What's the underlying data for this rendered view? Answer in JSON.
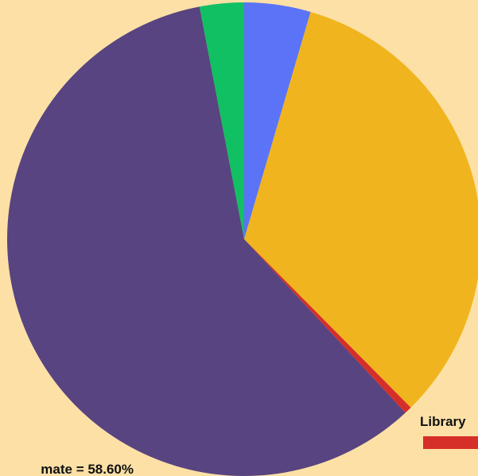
{
  "chart_data": {
    "type": "pie",
    "title": "",
    "start_angle_deg": 0,
    "direction": "clockwise",
    "slices": [
      {
        "label": "",
        "value": 4.5,
        "color": "#5b74f7",
        "display_label": ""
      },
      {
        "label": "",
        "value": 32.9,
        "color": "#f0b51e",
        "display_label": ""
      },
      {
        "label": "Library",
        "value": 0.5,
        "color": "#d62f2a",
        "display_label": "Library"
      },
      {
        "label": "",
        "value": 58.6,
        "color": "#584480",
        "display_label": "mate = 58.60%"
      },
      {
        "label": "",
        "value": 3.0,
        "color": "#11c062",
        "display_label": ""
      }
    ]
  }
}
